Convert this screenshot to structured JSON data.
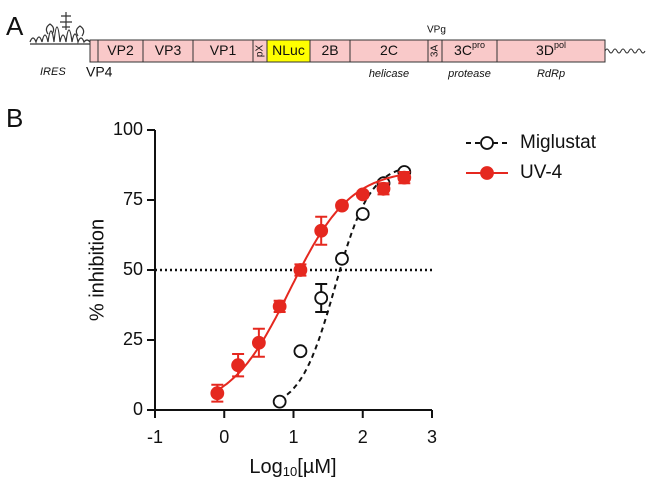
{
  "panel_a": {
    "label": "A",
    "ires": "IRES",
    "vp4": "VP4",
    "vpg": "VPg",
    "segments": [
      {
        "label": "VP2"
      },
      {
        "label": "VP3"
      },
      {
        "label": "VP1"
      },
      {
        "label": "pX"
      },
      {
        "label": "NLuc",
        "color": "#ffff00"
      },
      {
        "label": "2B"
      },
      {
        "label": "2C",
        "note": "helicase"
      },
      {
        "label": "3A"
      },
      {
        "label": "3C",
        "sup": "pro",
        "note": "protease"
      },
      {
        "label": "3D",
        "sup": "pol",
        "note": "RdRp"
      }
    ],
    "box_color": "#f9c9c9"
  },
  "chart_data": {
    "type": "scatter",
    "panel_label": "B",
    "xlabel": {
      "base": "Log",
      "sub": "10",
      "rest": "[µM]"
    },
    "ylabel": "% inhibition",
    "xlim": [
      -1,
      3
    ],
    "xticks": [
      -1,
      0,
      1,
      2,
      3
    ],
    "ylim": [
      0,
      100
    ],
    "yticks": [
      0,
      25,
      50,
      75,
      100
    ],
    "reference_line": 50,
    "legend": "upper right",
    "series": [
      {
        "name": "Miglustat",
        "color": "#111111",
        "marker": "open",
        "line_style": "dashed",
        "x": [
          0.8,
          1.1,
          1.4,
          1.7,
          2.0,
          2.3,
          2.6
        ],
        "values": [
          3,
          21,
          40,
          54,
          70,
          81,
          85
        ],
        "errors": [
          0,
          1,
          5,
          1,
          1,
          1,
          1
        ],
        "fit": {
          "bottom": 0,
          "top": 88,
          "log_ic50": 1.6,
          "hill": 1.7
        }
      },
      {
        "name": "UV-4",
        "color": "#e5281f",
        "marker": "filled",
        "line_style": "solid",
        "x": [
          -0.1,
          0.2,
          0.5,
          0.8,
          1.1,
          1.4,
          1.7,
          2.0,
          2.3,
          2.6
        ],
        "values": [
          6,
          16,
          24,
          37,
          50,
          64,
          73,
          77,
          79,
          83
        ],
        "errors": [
          3,
          4,
          5,
          2,
          2,
          5,
          1,
          1,
          2,
          2
        ],
        "fit": {
          "bottom": 0,
          "top": 86,
          "log_ic50": 0.95,
          "hill": 1.0
        }
      }
    ]
  }
}
